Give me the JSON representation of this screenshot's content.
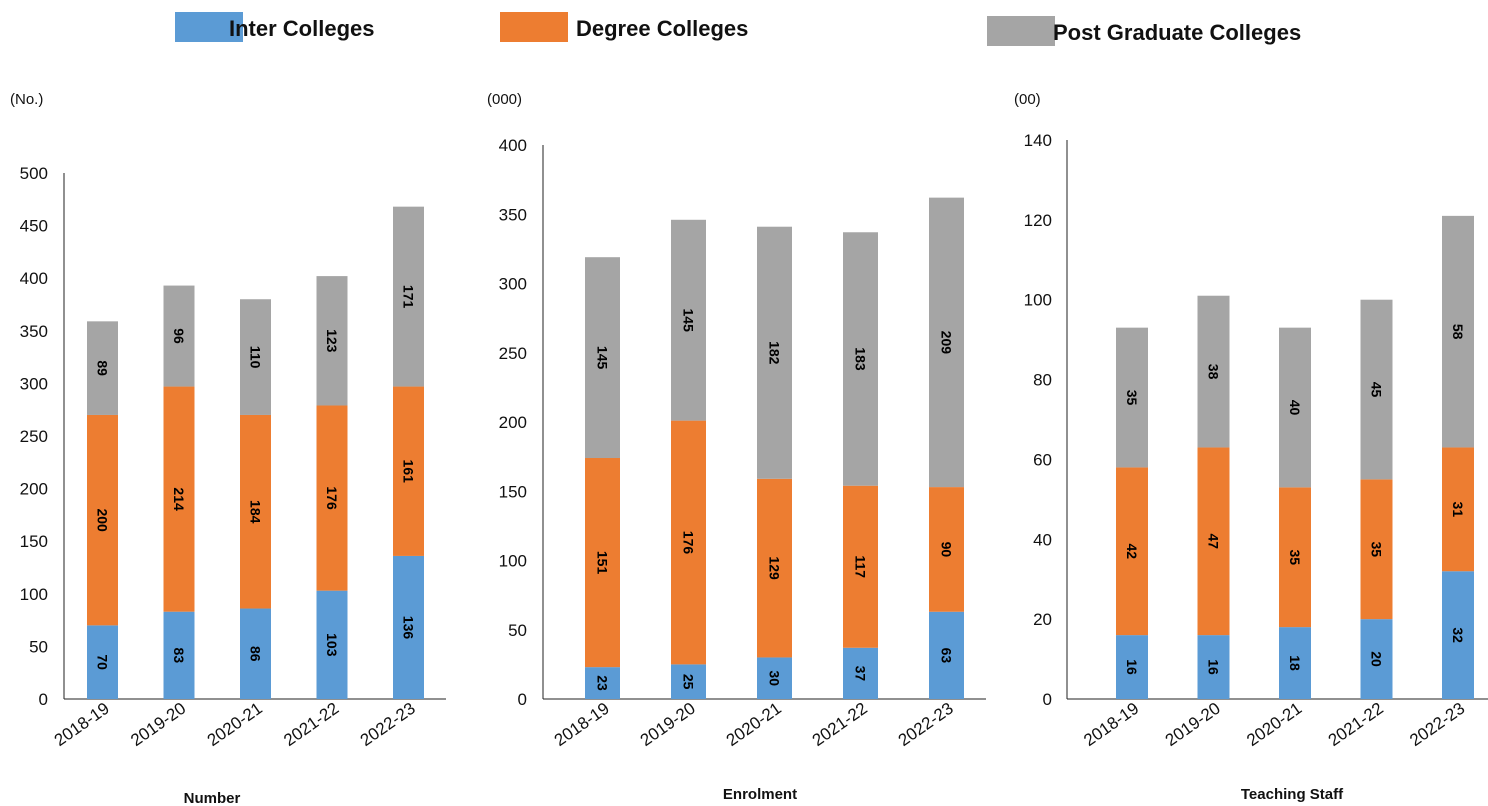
{
  "legend": [
    {
      "label": "Inter Colleges",
      "color": "#5b9bd5"
    },
    {
      "label": "Degree Colleges",
      "color": "#ed7d31"
    },
    {
      "label": "Post Graduate Colleges",
      "color": "#a5a5a5"
    }
  ],
  "chart_data": [
    {
      "type": "bar",
      "stacked": true,
      "unit_label": "(No.)",
      "xlabel": "Number",
      "categories": [
        "2018-19",
        "2019-20",
        "2020-21",
        "2021-22",
        "2022-23"
      ],
      "ylim": [
        0,
        500
      ],
      "yticks": [
        0,
        50,
        100,
        150,
        200,
        250,
        300,
        350,
        400,
        450,
        500
      ],
      "series": [
        {
          "name": "Inter Colleges",
          "values": [
            70,
            83,
            86,
            103,
            136
          ]
        },
        {
          "name": "Degree Colleges",
          "values": [
            200,
            214,
            184,
            176,
            161
          ]
        },
        {
          "name": "Post Graduate Colleges",
          "values": [
            89,
            96,
            110,
            123,
            171
          ]
        }
      ]
    },
    {
      "type": "bar",
      "stacked": true,
      "unit_label": "(000)",
      "xlabel": "Enrolment",
      "categories": [
        "2018-19",
        "2019-20",
        "2020-21",
        "2021-22",
        "2022-23"
      ],
      "ylim": [
        0,
        400
      ],
      "yticks": [
        0,
        50,
        100,
        150,
        200,
        250,
        300,
        350,
        400
      ],
      "series": [
        {
          "name": "Inter Colleges",
          "values": [
            23,
            25,
            30,
            37,
            63
          ]
        },
        {
          "name": "Degree Colleges",
          "values": [
            151,
            176,
            129,
            117,
            90
          ]
        },
        {
          "name": "Post Graduate Colleges",
          "values": [
            145,
            145,
            182,
            183,
            209
          ]
        }
      ]
    },
    {
      "type": "bar",
      "stacked": true,
      "unit_label": "(00)",
      "xlabel": "Teaching Staff",
      "categories": [
        "2018-19",
        "2019-20",
        "2020-21",
        "2021-22",
        "2022-23"
      ],
      "ylim": [
        0,
        140
      ],
      "yticks": [
        0,
        20,
        40,
        60,
        80,
        100,
        120,
        140
      ],
      "series": [
        {
          "name": "Inter Colleges",
          "values": [
            16,
            16,
            18,
            20,
            32
          ]
        },
        {
          "name": "Degree Colleges",
          "values": [
            42,
            47,
            35,
            35,
            31
          ]
        },
        {
          "name": "Post Graduate Colleges",
          "values": [
            35,
            38,
            40,
            45,
            58
          ]
        }
      ]
    }
  ]
}
